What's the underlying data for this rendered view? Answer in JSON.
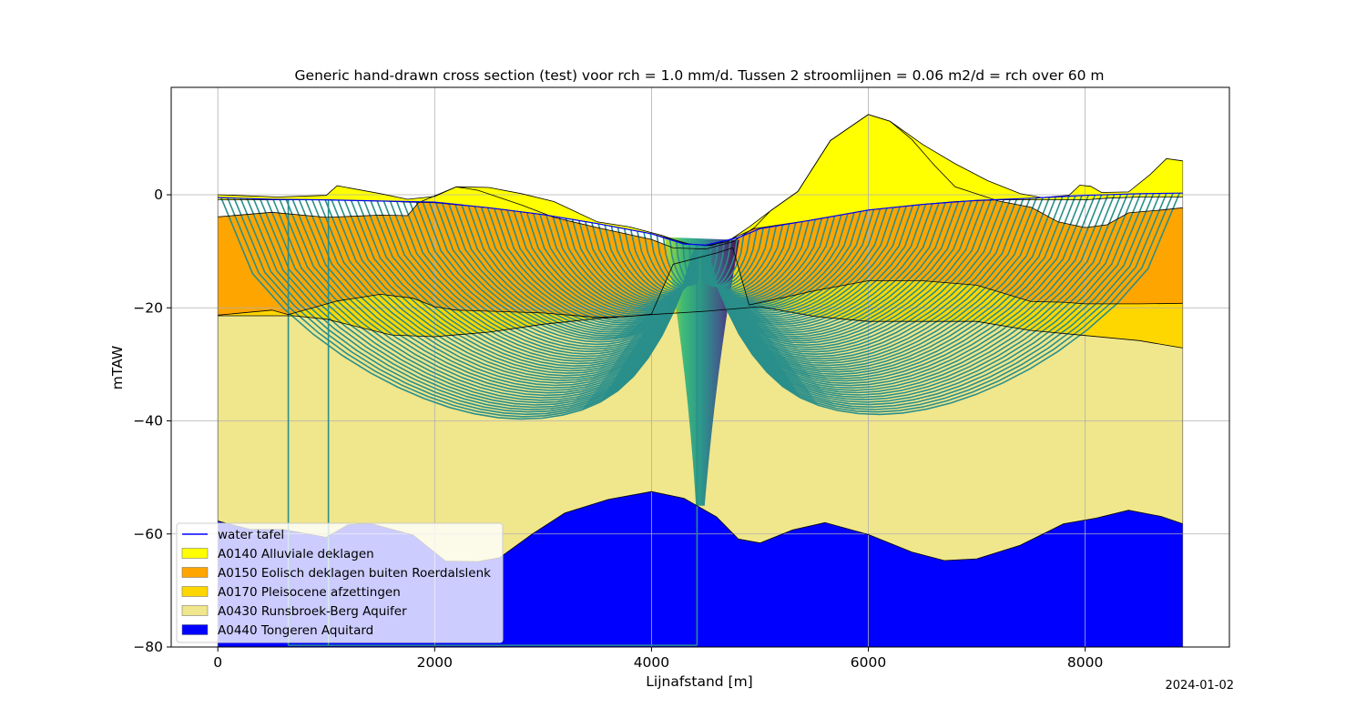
{
  "chart_data": {
    "type": "area",
    "title": "Generic hand-drawn cross section (test) voor rch = 1.0 mm/d. Tussen 2 stroomlijnen = 0.06 m2/d = rch over 60 m",
    "xlabel": "Lijnafstand [m]",
    "ylabel": "mTAW",
    "xlim": [
      -430,
      9330
    ],
    "ylim": [
      -80,
      19
    ],
    "xticks": [
      0,
      2000,
      4000,
      6000,
      8000
    ],
    "yticks": [
      -80,
      -60,
      -40,
      -20,
      0
    ],
    "grid": true,
    "legend_position": "lower-left",
    "date_stamp": "2024-01-02",
    "surface": [
      [
        0,
        0
      ],
      [
        550,
        -0.4
      ],
      [
        1000,
        -0.1
      ],
      [
        1100,
        1.6
      ],
      [
        1500,
        0.2
      ],
      [
        1750,
        -0.8
      ],
      [
        2000,
        -0.3
      ],
      [
        2200,
        1.4
      ],
      [
        2500,
        1.3
      ],
      [
        2800,
        0.2
      ],
      [
        3100,
        -1.2
      ],
      [
        3500,
        -4.8
      ],
      [
        3800,
        -5.7
      ],
      [
        4100,
        -7.2
      ],
      [
        4300,
        -8.6
      ],
      [
        4500,
        -9.0
      ],
      [
        4700,
        -8.3
      ],
      [
        4900,
        -5.7
      ],
      [
        5100,
        -2.8
      ],
      [
        5350,
        0.6
      ],
      [
        5650,
        9.6
      ],
      [
        6000,
        14.2
      ],
      [
        6200,
        13.0
      ],
      [
        6500,
        8.9
      ],
      [
        6800,
        5.5
      ],
      [
        7100,
        2.5
      ],
      [
        7400,
        0.2
      ],
      [
        7600,
        -0.5
      ],
      [
        7850,
        -0.1
      ],
      [
        7950,
        1.7
      ],
      [
        8050,
        1.5
      ],
      [
        8150,
        0.4
      ],
      [
        8400,
        0.5
      ],
      [
        8600,
        3.6
      ],
      [
        8750,
        6.4
      ],
      [
        8900,
        6.0
      ]
    ],
    "water_table": [
      [
        0,
        -0.5
      ],
      [
        500,
        -0.8
      ],
      [
        1000,
        -0.9
      ],
      [
        1500,
        -1.1
      ],
      [
        2000,
        -1.3
      ],
      [
        2500,
        -2.3
      ],
      [
        3000,
        -3.5
      ],
      [
        3500,
        -5.1
      ],
      [
        4000,
        -6.9
      ],
      [
        4300,
        -8.7
      ],
      [
        4500,
        -8.9
      ],
      [
        4800,
        -7.6
      ],
      [
        5000,
        -6.0
      ],
      [
        5500,
        -4.4
      ],
      [
        6000,
        -2.7
      ],
      [
        6500,
        -1.7
      ],
      [
        7000,
        -1.0
      ],
      [
        7500,
        -0.6
      ],
      [
        8000,
        -0.1
      ],
      [
        8500,
        0.2
      ],
      [
        8900,
        0.3
      ]
    ],
    "boundaries": {
      "A0140_bottom": [
        [
          0,
          -0.9
        ],
        [
          500,
          -0.9
        ],
        [
          1000,
          -0.9
        ],
        [
          1500,
          -1.1
        ],
        [
          1750,
          -1.3
        ],
        [
          2000,
          -1.4
        ],
        [
          2500,
          -2.3
        ],
        [
          3000,
          -3.5
        ],
        [
          3500,
          -5.1
        ],
        [
          4000,
          -6.9
        ],
        [
          4350,
          -8.7
        ],
        [
          4550,
          -9.0
        ],
        [
          4750,
          -7.7
        ],
        [
          4950,
          -6.0
        ],
        [
          5500,
          -4.4
        ],
        [
          6000,
          -2.7
        ],
        [
          6500,
          -1.7
        ],
        [
          6800,
          -1.2
        ],
        [
          7200,
          -0.9
        ],
        [
          7600,
          -0.9
        ],
        [
          8000,
          -0.9
        ],
        [
          8200,
          -0.6
        ],
        [
          8500,
          -0.4
        ],
        [
          8900,
          -0.4
        ]
      ],
      "A0150_top": [
        [
          0,
          -3.9
        ],
        [
          500,
          -3.1
        ],
        [
          1000,
          -4.0
        ],
        [
          1500,
          -3.6
        ],
        [
          1750,
          -3.7
        ],
        [
          1850,
          -1.4
        ],
        [
          2200,
          1.4
        ],
        [
          2400,
          0.8
        ],
        [
          2800,
          -1.8
        ],
        [
          3100,
          -4.0
        ],
        [
          3500,
          -5.8
        ],
        [
          4000,
          -7.9
        ],
        [
          4200,
          -9.4
        ],
        [
          4500,
          -9.6
        ],
        [
          4750,
          -8.3
        ],
        [
          4950,
          -5.8
        ],
        [
          5100,
          -2.8
        ],
        [
          5350,
          0.6
        ],
        [
          5650,
          9.6
        ],
        [
          6000,
          14.2
        ],
        [
          6200,
          13.0
        ],
        [
          6400,
          9.8
        ],
        [
          6600,
          5.4
        ],
        [
          6800,
          1.4
        ],
        [
          7200,
          -1.1
        ],
        [
          7500,
          -2.2
        ],
        [
          7750,
          -4.8
        ],
        [
          8000,
          -5.8
        ],
        [
          8200,
          -5.3
        ],
        [
          8400,
          -3.2
        ],
        [
          8700,
          -2.7
        ],
        [
          8900,
          -2.3
        ]
      ],
      "A0150_bottom": [
        [
          0,
          -21.3
        ],
        [
          500,
          -20.4
        ],
        [
          650,
          -21.2
        ],
        [
          1100,
          -18.8
        ],
        [
          1500,
          -17.6
        ],
        [
          1800,
          -18.3
        ],
        [
          2000,
          -19.8
        ],
        [
          2200,
          -20.4
        ],
        [
          3000,
          -20.9
        ],
        [
          3500,
          -21.7
        ],
        [
          3800,
          -21.5
        ],
        [
          4000,
          -21.1
        ],
        [
          4200,
          -12.3
        ],
        [
          4600,
          -10.3
        ],
        [
          4750,
          -9.4
        ],
        [
          4900,
          -19.5
        ],
        [
          5500,
          -17.0
        ],
        [
          6000,
          -15.2
        ],
        [
          6500,
          -15.2
        ],
        [
          7000,
          -16.0
        ],
        [
          7500,
          -18.9
        ],
        [
          7800,
          -19.0
        ],
        [
          8000,
          -19.3
        ],
        [
          8500,
          -19.3
        ],
        [
          8900,
          -19.2
        ]
      ],
      "A0170_bottom": [
        [
          0,
          -21.4
        ],
        [
          700,
          -21.4
        ],
        [
          1000,
          -22.0
        ],
        [
          1600,
          -24.8
        ],
        [
          2000,
          -25.1
        ],
        [
          2500,
          -24.3
        ],
        [
          3000,
          -22.9
        ],
        [
          3500,
          -21.9
        ],
        [
          4000,
          -21.2
        ],
        [
          4500,
          -20.6
        ],
        [
          5000,
          -19.8
        ],
        [
          5500,
          -21.5
        ],
        [
          6000,
          -22.4
        ],
        [
          6500,
          -22.4
        ],
        [
          7000,
          -22.4
        ],
        [
          7500,
          -24.0
        ],
        [
          8000,
          -24.9
        ],
        [
          8500,
          -25.8
        ],
        [
          8900,
          -27.1
        ]
      ],
      "A0430_bottom": [
        [
          0,
          -57.7
        ],
        [
          300,
          -59.2
        ],
        [
          600,
          -59.2
        ],
        [
          1000,
          -60.6
        ],
        [
          1200,
          -58.4
        ],
        [
          1400,
          -58.1
        ],
        [
          1800,
          -60.2
        ],
        [
          2100,
          -64.8
        ],
        [
          2400,
          -64.9
        ],
        [
          2600,
          -64.2
        ],
        [
          2900,
          -60.0
        ],
        [
          3200,
          -56.3
        ],
        [
          3600,
          -53.9
        ],
        [
          4000,
          -52.5
        ],
        [
          4300,
          -53.7
        ],
        [
          4600,
          -57.0
        ],
        [
          4800,
          -60.9
        ],
        [
          5000,
          -61.6
        ],
        [
          5300,
          -59.3
        ],
        [
          5600,
          -58.0
        ],
        [
          6000,
          -60.1
        ],
        [
          6400,
          -63.2
        ],
        [
          6700,
          -64.7
        ],
        [
          7000,
          -64.4
        ],
        [
          7400,
          -62.0
        ],
        [
          7800,
          -58.2
        ],
        [
          8100,
          -57.2
        ],
        [
          8400,
          -55.8
        ],
        [
          8700,
          -56.9
        ],
        [
          8900,
          -58.2
        ]
      ],
      "A0440_bottom": [
        [
          0,
          -80
        ],
        [
          8900,
          -80
        ]
      ]
    },
    "series": [
      {
        "name": "water tafel",
        "kind": "line",
        "color": "#0000ff"
      },
      {
        "name": "A0140 Alluviale deklagen",
        "kind": "fill",
        "color": "#ffff00"
      },
      {
        "name": "A0150 Eolisch deklagen buiten Roerdalslenk",
        "kind": "fill",
        "color": "#ffa500"
      },
      {
        "name": "A0170 Pleisocene afzettingen",
        "kind": "fill",
        "color": "#ffd700"
      },
      {
        "name": "A0430 Runsbroek-Berg Aquifer",
        "kind": "fill",
        "color": "#f0e68c"
      },
      {
        "name": "A0440 Tongeren Aquitard",
        "kind": "fill",
        "color": "#0000ff"
      }
    ],
    "streamlines": {
      "color": "#2a8f8a",
      "drain_x": 4450,
      "spacing_m": 60,
      "left_start": 0,
      "right_end": 8900,
      "vertical_x": [
        650,
        1020,
        4420
      ]
    }
  }
}
